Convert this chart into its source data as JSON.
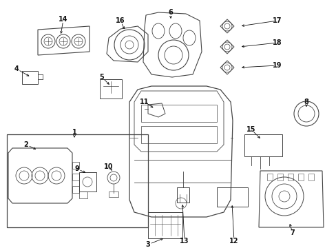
{
  "bg_color": "#ffffff",
  "fig_width": 4.89,
  "fig_height": 3.6,
  "dpi": 100,
  "line_color": "#444444",
  "text_color": "#111111",
  "font_size": 7.0
}
